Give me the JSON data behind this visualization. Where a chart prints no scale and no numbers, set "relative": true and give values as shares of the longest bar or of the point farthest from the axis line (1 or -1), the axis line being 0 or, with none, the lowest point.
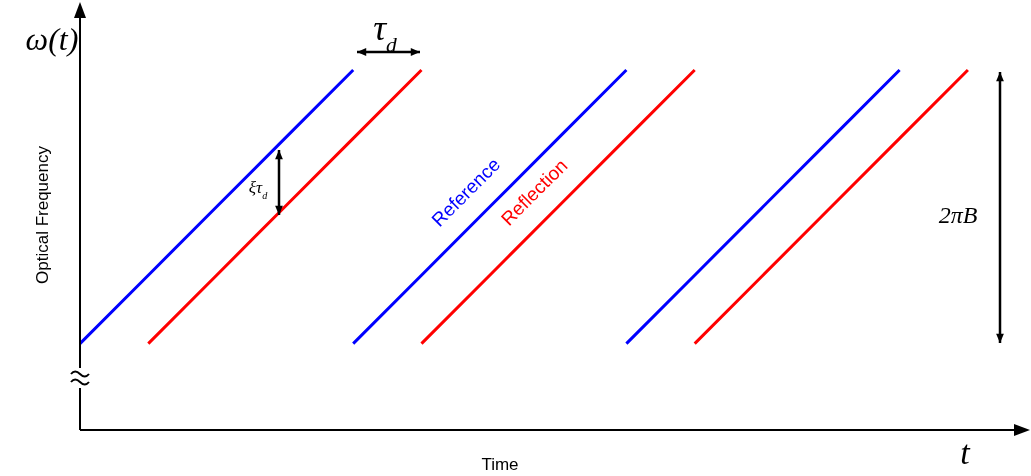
{
  "chart_data": {
    "type": "line",
    "relative": true,
    "xlabel": "Time",
    "ylabel": "Optical Frequency",
    "categories": [
      null,
      null,
      null,
      null,
      null,
      null,
      null,
      null,
      null,
      null,
      null,
      null,
      null,
      null
    ],
    "series": [
      {
        "color": "#0000ff",
        "values": [
          0.24,
          0.43,
          0.62,
          0.81,
          1.0,
          null,
          null,
          null,
          null,
          null,
          null,
          null,
          null,
          null
        ]
      },
      {
        "color": "#ff0000",
        "values": [
          null,
          0.24,
          0.43,
          0.62,
          0.81,
          1.0,
          null,
          null,
          null,
          null,
          null,
          null,
          null,
          null
        ]
      },
      {
        "name": "Reference",
        "color": "#0000ff",
        "values": [
          null,
          null,
          null,
          null,
          0.24,
          0.43,
          0.62,
          0.81,
          1.0,
          null,
          null,
          null,
          null,
          null
        ]
      },
      {
        "name": "Reflection",
        "color": "#ff0000",
        "values": [
          null,
          null,
          null,
          null,
          null,
          0.24,
          0.43,
          0.62,
          0.81,
          1.0,
          null,
          null,
          null,
          null
        ]
      },
      {
        "color": "#0000ff",
        "values": [
          null,
          null,
          null,
          null,
          null,
          null,
          null,
          null,
          0.24,
          0.43,
          0.62,
          0.81,
          1.0,
          null
        ]
      },
      {
        "color": "#ff0000",
        "values": [
          null,
          null,
          null,
          null,
          null,
          null,
          null,
          null,
          null,
          0.24,
          0.43,
          0.62,
          0.81,
          1.0
        ]
      }
    ],
    "annotations": [
      "ω(t)",
      "τ$_{d}$",
      "ξτ$_{d}$",
      "2πB",
      "t"
    ]
  }
}
